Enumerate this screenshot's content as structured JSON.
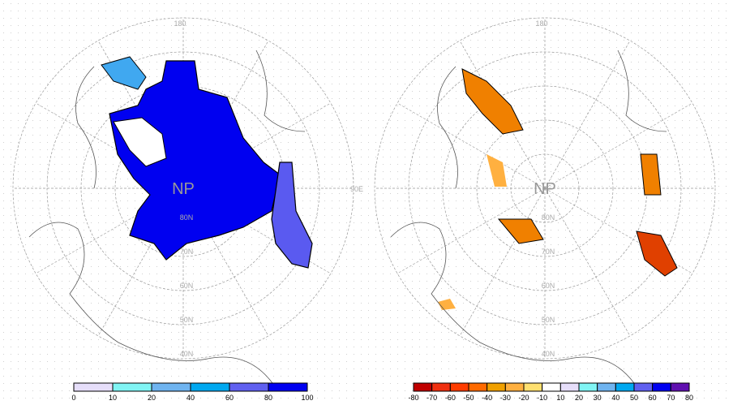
{
  "left_map": {
    "center_label": "NP",
    "lon_label_top": "180",
    "lon_label_right": "90E",
    "lat_labels": [
      "80N",
      "70N",
      "60N",
      "50N",
      "40N"
    ],
    "colorbar": {
      "ticks": [
        "0",
        "10",
        "20",
        "40",
        "60",
        "80",
        "100"
      ],
      "colors": [
        "#e6defa",
        "#80f4f4",
        "#6fb4f0",
        "#00a8f0",
        "#6060f0",
        "#0000f0"
      ]
    }
  },
  "right_map": {
    "center_label": "NP",
    "lon_label_top": "180",
    "lat_labels": [
      "80N",
      "70N",
      "60N",
      "50N",
      "40N"
    ],
    "colorbar": {
      "ticks": [
        "-80",
        "-70",
        "-60",
        "-50",
        "-40",
        "-30",
        "-20",
        "-10",
        "10",
        "20",
        "30",
        "40",
        "50",
        "60",
        "70",
        "80"
      ],
      "colors": [
        "#c00000",
        "#f03010",
        "#ff3c00",
        "#ff6a00",
        "#f0a000",
        "#ffb040",
        "#ffe070",
        "#ffffff",
        "#e6defa",
        "#80f4f4",
        "#6fb4f0",
        "#00a8f0",
        "#6060f0",
        "#0000f0",
        "#6010b0"
      ]
    }
  }
}
